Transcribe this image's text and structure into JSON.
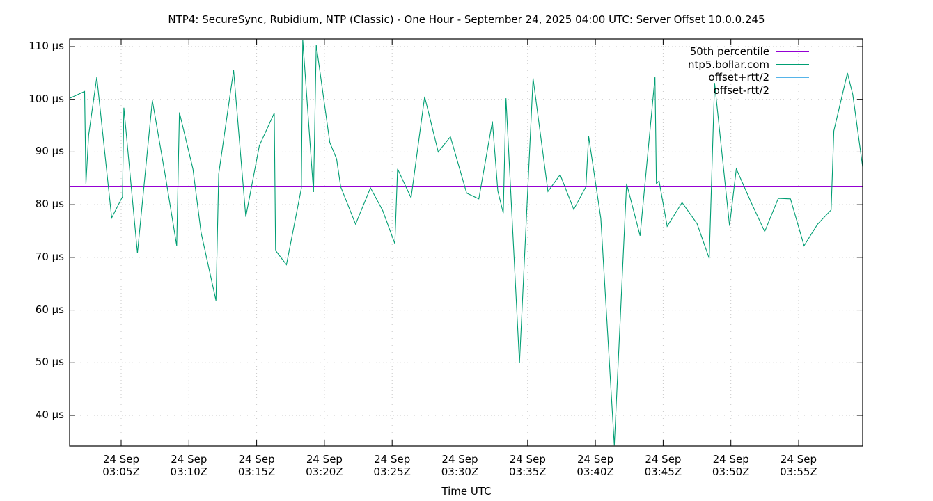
{
  "chart_data": {
    "type": "line",
    "title": "NTP4: SecureSync, Rubidium, NTP (Classic) - One Hour - September 24, 2025 04:00 UTC: Server Offset 10.0.0.245",
    "xlabel": "Time UTC",
    "ylabel": "",
    "ylim": [
      34,
      111.5
    ],
    "xlim_minutes_after_0300": [
      1.2,
      59.8
    ],
    "grid": true,
    "legend_position": "top-right-inside",
    "y_ticks": [
      {
        "value": 110,
        "label": "110 µs"
      },
      {
        "value": 100,
        "label": "100 µs"
      },
      {
        "value": 90,
        "label": "90 µs"
      },
      {
        "value": 80,
        "label": "80 µs"
      },
      {
        "value": 70,
        "label": "70 µs"
      },
      {
        "value": 60,
        "label": "60 µs"
      },
      {
        "value": 50,
        "label": "50 µs"
      },
      {
        "value": 40,
        "label": "40 µs"
      }
    ],
    "x_ticks": [
      {
        "minute": 5,
        "line1": "24 Sep",
        "line2": "03:05Z"
      },
      {
        "minute": 10,
        "line1": "24 Sep",
        "line2": "03:10Z"
      },
      {
        "minute": 15,
        "line1": "24 Sep",
        "line2": "03:15Z"
      },
      {
        "minute": 20,
        "line1": "24 Sep",
        "line2": "03:20Z"
      },
      {
        "minute": 25,
        "line1": "24 Sep",
        "line2": "03:25Z"
      },
      {
        "minute": 30,
        "line1": "24 Sep",
        "line2": "03:30Z"
      },
      {
        "minute": 35,
        "line1": "24 Sep",
        "line2": "03:35Z"
      },
      {
        "minute": 40,
        "line1": "24 Sep",
        "line2": "03:40Z"
      },
      {
        "minute": 45,
        "line1": "24 Sep",
        "line2": "03:45Z"
      },
      {
        "minute": 50,
        "line1": "24 Sep",
        "line2": "03:50Z"
      },
      {
        "minute": 55,
        "line1": "24 Sep",
        "line2": "03:55Z"
      }
    ],
    "series": [
      {
        "name": "50th percentile",
        "color": "#9400d3",
        "constant_value": 83.4
      },
      {
        "name": "ntp5.bollar.com",
        "color": "#009e73",
        "x_minutes_after_0300": [
          1.2,
          2.3,
          2.4,
          2.6,
          3.2,
          4.3,
          5.1,
          5.2,
          6.2,
          7.3,
          8.3,
          9.1,
          9.3,
          10.3,
          10.9,
          12.0,
          12.2,
          13.3,
          14.2,
          15.2,
          16.3,
          16.4,
          17.2,
          18.3,
          18.4,
          19.2,
          19.4,
          20.4,
          20.9,
          21.2,
          22.3,
          23.4,
          24.3,
          25.2,
          25.4,
          26.4,
          27.4,
          28.4,
          29.3,
          30.5,
          31.4,
          32.4,
          32.8,
          33.2,
          33.4,
          34.4,
          35.4,
          36.5,
          37.4,
          38.4,
          39.3,
          39.5,
          40.4,
          41.4,
          42.3,
          43.3,
          44.4,
          44.5,
          44.7,
          45.3,
          46.4,
          47.5,
          48.4,
          48.8,
          49.9,
          50.4,
          51.5,
          52.5,
          53.5,
          54.4,
          55.4,
          56.4,
          57.4,
          57.6,
          58.6,
          59.0,
          60.1
        ],
        "values_us": [
          100.2,
          101.5,
          83.9,
          93.2,
          104.2,
          77.5,
          81.5,
          98.4,
          70.8,
          99.8,
          84.9,
          72.2,
          97.5,
          86.8,
          74.7,
          61.8,
          85.8,
          105.5,
          77.7,
          91.2,
          97.4,
          71.3,
          68.6,
          83.1,
          111.3,
          82.4,
          110.3,
          91.8,
          88.7,
          83.4,
          76.3,
          83.2,
          78.9,
          72.6,
          86.8,
          81.3,
          100.5,
          90.0,
          92.9,
          82.2,
          81.1,
          95.8,
          82.6,
          78.4,
          100.2,
          49.9,
          104.0,
          82.5,
          85.7,
          79.1,
          83.4,
          93.0,
          77.4,
          34.3,
          84.0,
          74.1,
          104.2,
          84.0,
          84.5,
          75.9,
          80.4,
          76.4,
          69.8,
          103.1,
          76.0,
          86.8,
          80.4,
          74.9,
          81.2,
          81.1,
          72.2,
          76.3,
          79.0,
          94.0,
          105.0,
          100.9,
          80.2
        ]
      },
      {
        "name": "offset+rtt/2",
        "color": "#56b4e9",
        "values_us": []
      },
      {
        "name": "offset-rtt/2",
        "color": "#e69f00",
        "values_us": []
      }
    ]
  },
  "colors": {
    "axis": "#000000",
    "grid": "#c8c8c8",
    "background": "#ffffff"
  }
}
